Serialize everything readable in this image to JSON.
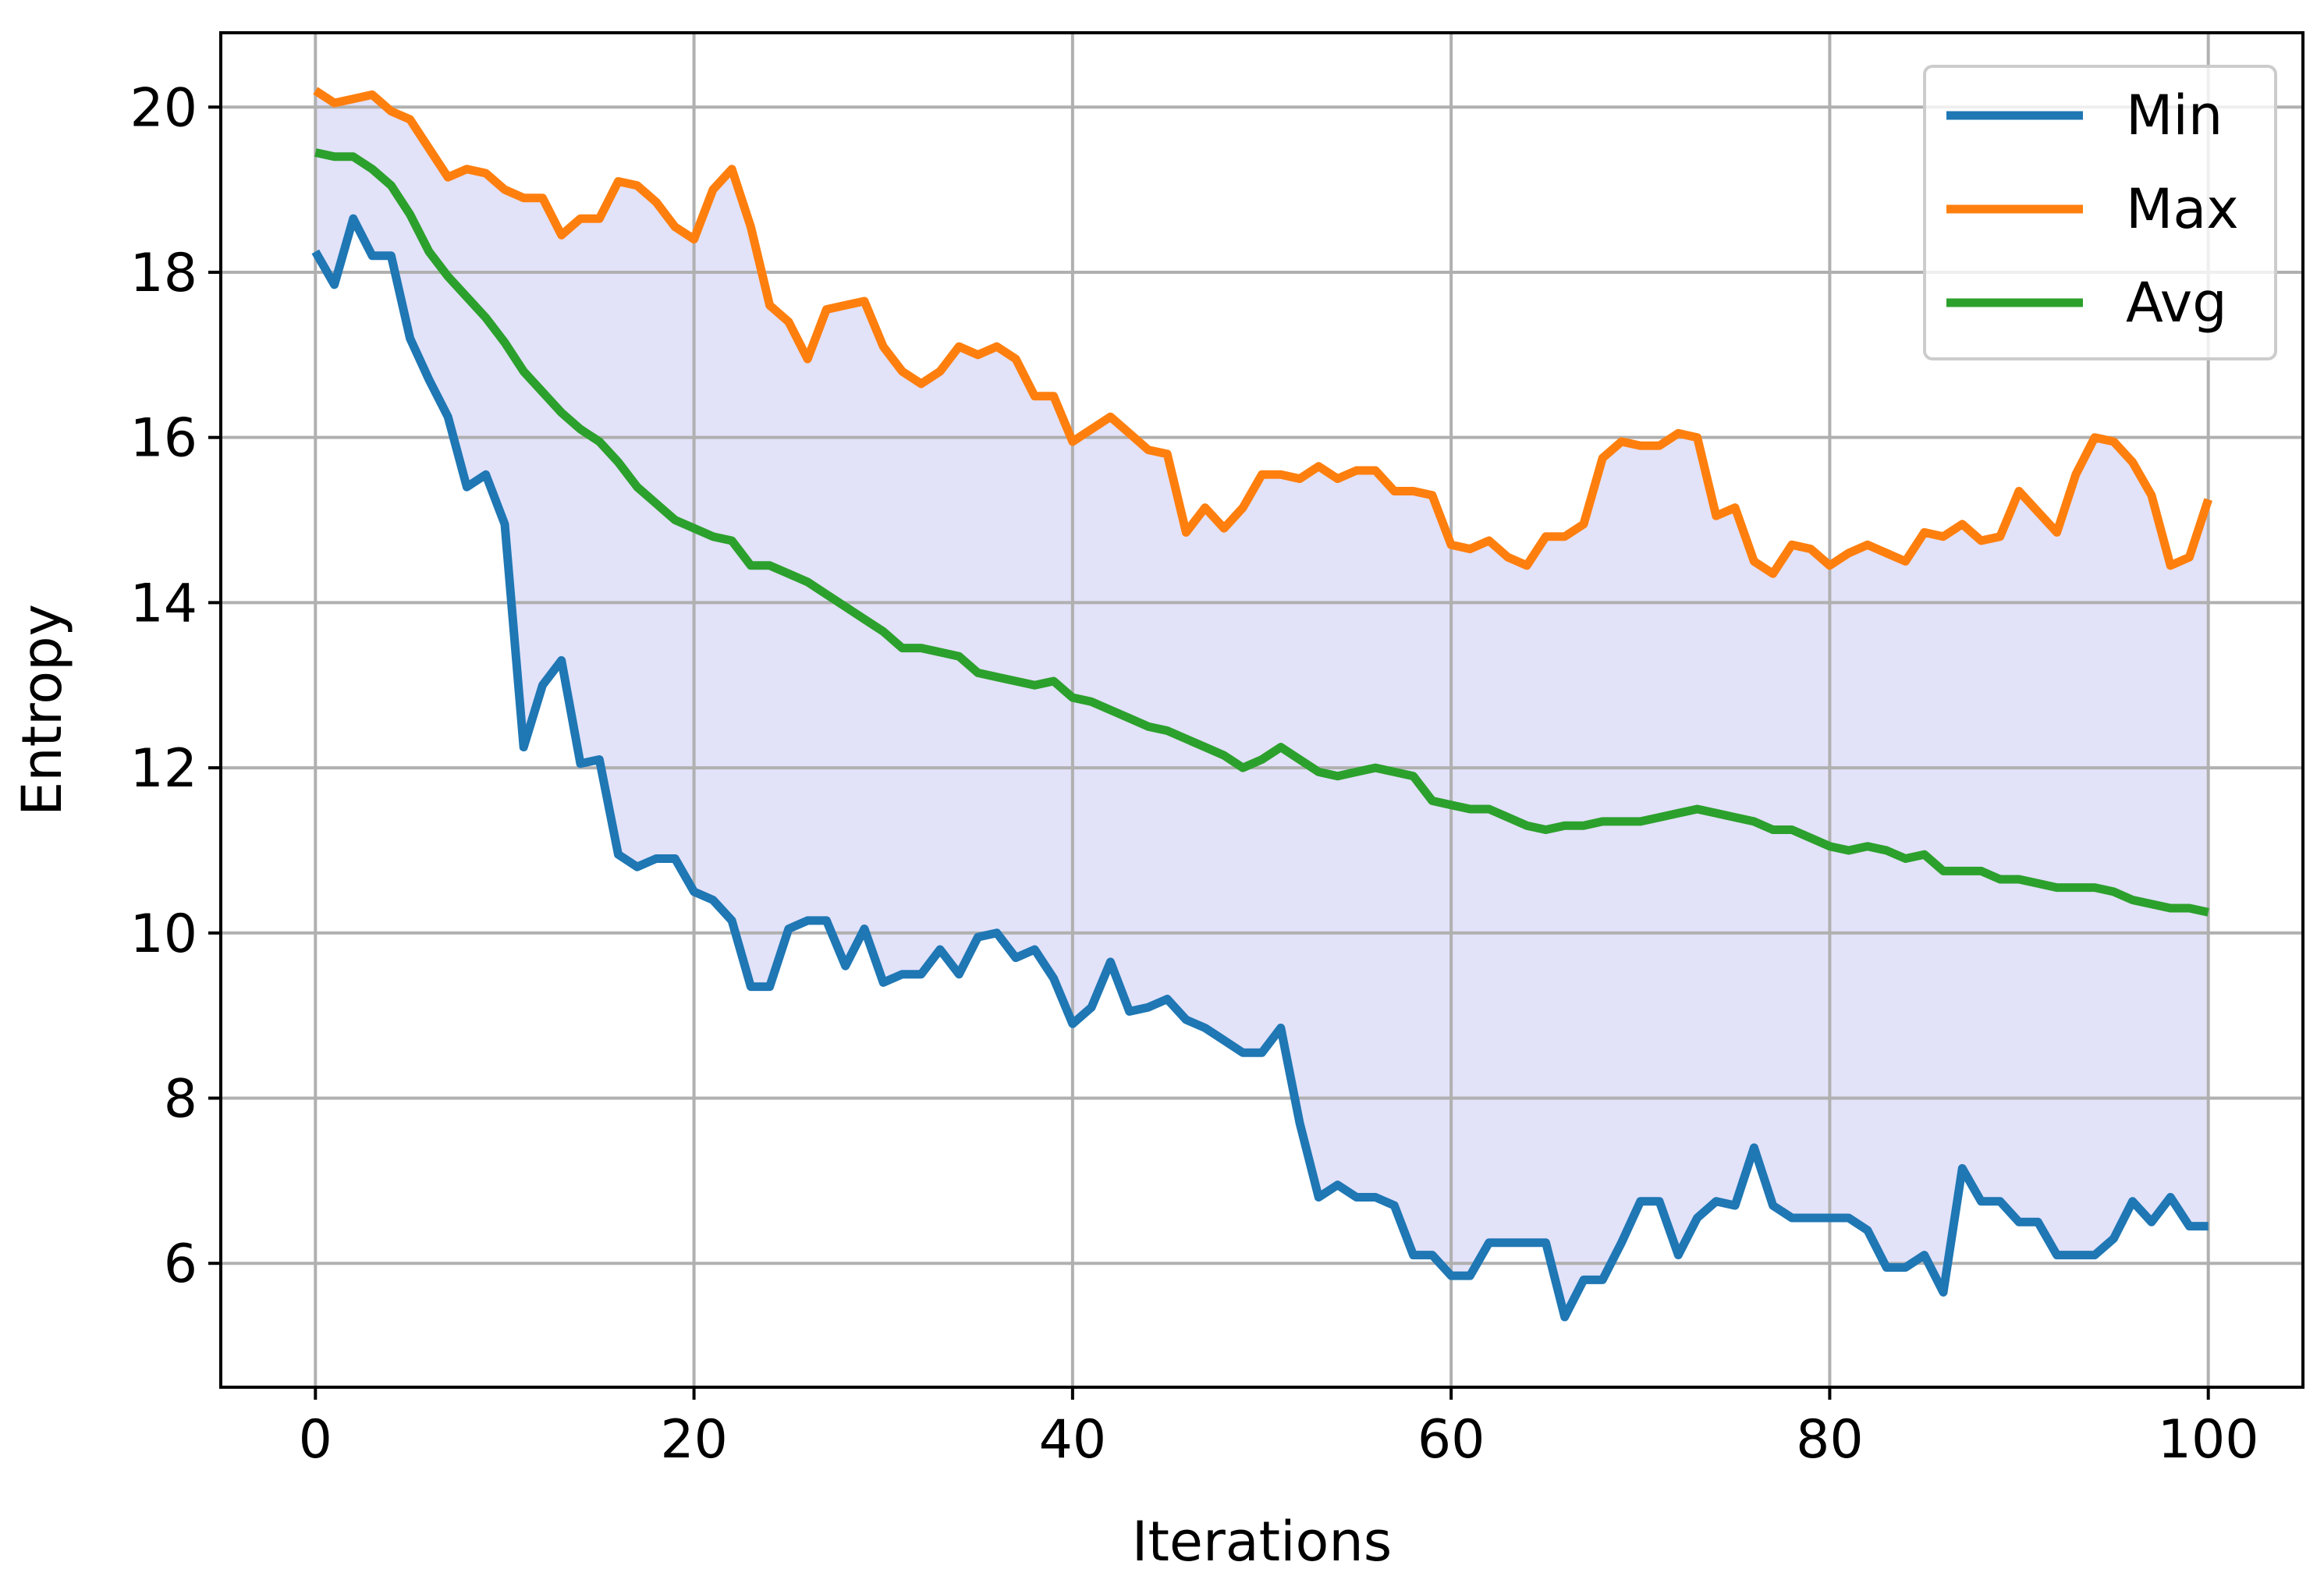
{
  "chart_data": {
    "type": "line",
    "xlabel": "Iterations",
    "ylabel": "Entropy",
    "xlim": [
      -5,
      105
    ],
    "ylim": [
      4.5,
      20.9
    ],
    "xticks": [
      0,
      20,
      40,
      60,
      80,
      100
    ],
    "yticks": [
      6,
      8,
      10,
      12,
      14,
      16,
      18,
      20
    ],
    "xtick_labels": [
      "0",
      "20",
      "40",
      "60",
      "80",
      "100"
    ],
    "ytick_labels": [
      "6",
      "8",
      "10",
      "12",
      "14",
      "16",
      "18",
      "20"
    ],
    "grid": true,
    "legend_position": "top-right",
    "fill_between": {
      "lower": "Min",
      "upper": "Max",
      "color": "#e2e2f9"
    },
    "x_start": 0,
    "x_step": 1,
    "series": [
      {
        "name": "Min",
        "color": "#1f77b4",
        "values": [
          18.25,
          17.85,
          18.65,
          18.2,
          18.2,
          17.2,
          16.7,
          16.25,
          15.4,
          15.55,
          14.95,
          12.25,
          13.0,
          13.3,
          12.05,
          12.1,
          10.95,
          10.8,
          10.9,
          10.9,
          10.5,
          10.4,
          10.15,
          9.35,
          9.35,
          10.05,
          10.15,
          10.15,
          9.6,
          10.05,
          9.4,
          9.5,
          9.5,
          9.8,
          9.5,
          9.95,
          10.0,
          9.7,
          9.8,
          9.45,
          8.9,
          9.1,
          9.65,
          9.05,
          9.1,
          9.2,
          8.95,
          8.85,
          8.7,
          8.55,
          8.55,
          8.85,
          7.7,
          6.8,
          6.95,
          6.8,
          6.8,
          6.7,
          6.1,
          6.1,
          5.85,
          5.85,
          6.25,
          6.25,
          6.25,
          6.25,
          5.35,
          5.8,
          5.8,
          6.25,
          6.75,
          6.75,
          6.1,
          6.55,
          6.75,
          6.7,
          7.4,
          6.7,
          6.55,
          6.55,
          6.55,
          6.55,
          6.4,
          5.95,
          5.95,
          6.1,
          5.65,
          7.15,
          6.75,
          6.75,
          6.5,
          6.5,
          6.1,
          6.1,
          6.1,
          6.3,
          6.75,
          6.5,
          6.8,
          6.45,
          6.45
        ]
      },
      {
        "name": "Max",
        "color": "#ff7f0e",
        "values": [
          20.2,
          20.05,
          20.1,
          20.15,
          19.95,
          19.85,
          19.5,
          19.15,
          19.25,
          19.2,
          19.0,
          18.9,
          18.9,
          18.45,
          18.65,
          18.65,
          19.1,
          19.05,
          18.85,
          18.55,
          18.4,
          19.0,
          19.25,
          18.55,
          17.6,
          17.4,
          16.95,
          17.55,
          17.6,
          17.65,
          17.1,
          16.8,
          16.65,
          16.8,
          17.1,
          17.0,
          17.1,
          16.95,
          16.5,
          16.5,
          15.95,
          16.1,
          16.25,
          16.05,
          15.85,
          15.8,
          14.85,
          15.15,
          14.9,
          15.15,
          15.55,
          15.55,
          15.5,
          15.65,
          15.5,
          15.6,
          15.6,
          15.35,
          15.35,
          15.3,
          14.7,
          14.65,
          14.75,
          14.55,
          14.45,
          14.8,
          14.8,
          14.95,
          15.75,
          15.95,
          15.9,
          15.9,
          16.05,
          16.0,
          15.05,
          15.15,
          14.5,
          14.35,
          14.7,
          14.65,
          14.45,
          14.6,
          14.7,
          14.6,
          14.5,
          14.85,
          14.8,
          14.95,
          14.75,
          14.8,
          15.35,
          15.1,
          14.85,
          15.55,
          16.0,
          15.95,
          15.7,
          15.3,
          14.45,
          14.55,
          15.25
        ]
      },
      {
        "name": "Avg",
        "color": "#2ca02c",
        "values": [
          19.45,
          19.4,
          19.4,
          19.25,
          19.05,
          18.7,
          18.25,
          17.95,
          17.7,
          17.45,
          17.15,
          16.8,
          16.55,
          16.3,
          16.1,
          15.95,
          15.7,
          15.4,
          15.2,
          15.0,
          14.9,
          14.8,
          14.75,
          14.45,
          14.45,
          14.35,
          14.25,
          14.1,
          13.95,
          13.8,
          13.65,
          13.45,
          13.45,
          13.4,
          13.35,
          13.15,
          13.1,
          13.05,
          13.0,
          13.05,
          12.85,
          12.8,
          12.7,
          12.6,
          12.5,
          12.45,
          12.35,
          12.25,
          12.15,
          12.0,
          12.1,
          12.25,
          12.1,
          11.95,
          11.9,
          11.95,
          12.0,
          11.95,
          11.9,
          11.6,
          11.55,
          11.5,
          11.5,
          11.4,
          11.3,
          11.25,
          11.3,
          11.3,
          11.35,
          11.35,
          11.35,
          11.4,
          11.45,
          11.5,
          11.45,
          11.4,
          11.35,
          11.25,
          11.25,
          11.15,
          11.05,
          11.0,
          11.05,
          11.0,
          10.9,
          10.95,
          10.75,
          10.75,
          10.75,
          10.65,
          10.65,
          10.6,
          10.55,
          10.55,
          10.55,
          10.5,
          10.4,
          10.35,
          10.3,
          10.3,
          10.25
        ]
      }
    ]
  }
}
